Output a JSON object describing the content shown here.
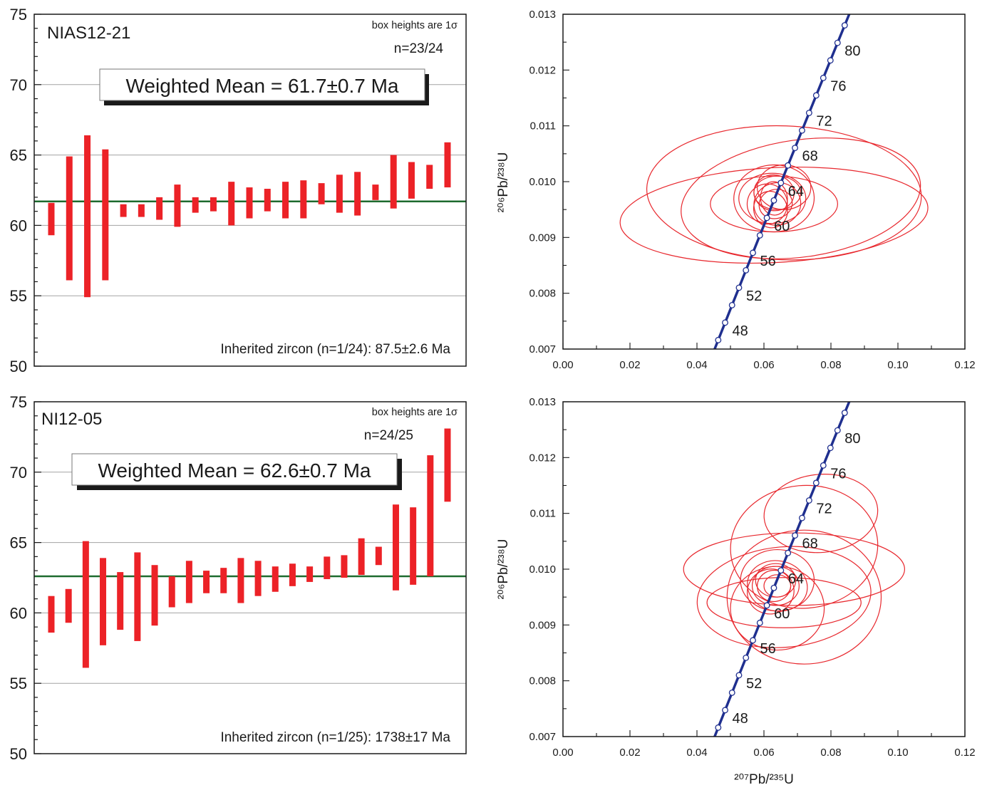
{
  "chart_data": [
    {
      "type": "bar",
      "sample": "NIAS12-21",
      "note": "box heights are 1σ",
      "n": "n=23/24",
      "weighted_mean_label": "Weighted Mean = 61.7±0.7 Ma",
      "mean": 61.7,
      "inherited": "Inherited zircon (n=1/24): 87.5±2.6 Ma",
      "ylim": [
        50,
        75
      ],
      "yticks": [
        50,
        55,
        60,
        65,
        70,
        75
      ],
      "grid": [
        55,
        60,
        65,
        70
      ],
      "boxes": [
        [
          59.3,
          61.6
        ],
        [
          56.1,
          64.9
        ],
        [
          54.9,
          66.4
        ],
        [
          56.1,
          65.4
        ],
        [
          60.6,
          61.5
        ],
        [
          60.6,
          61.5
        ],
        [
          60.4,
          62.0
        ],
        [
          59.9,
          62.9
        ],
        [
          60.9,
          62.0
        ],
        [
          61.0,
          62.0
        ],
        [
          60.0,
          63.1
        ],
        [
          60.5,
          62.7
        ],
        [
          61.0,
          62.6
        ],
        [
          60.5,
          63.1
        ],
        [
          60.5,
          63.2
        ],
        [
          61.5,
          63.0
        ],
        [
          60.9,
          63.6
        ],
        [
          60.7,
          63.8
        ],
        [
          61.8,
          62.9
        ],
        [
          61.2,
          65.0
        ],
        [
          61.9,
          64.5
        ],
        [
          62.6,
          64.3
        ],
        [
          62.7,
          65.9
        ]
      ],
      "color": "#ec2227",
      "mean_color": "#1e6b2e"
    },
    {
      "type": "scatter",
      "xlabel": "²⁰⁷Pb/²³⁵U",
      "ylabel": "²⁰⁶Pb/²³⁸U",
      "xlim": [
        0.0,
        0.12
      ],
      "ylim": [
        0.007,
        0.013
      ],
      "xticks": [
        "0.00",
        "0.02",
        "0.04",
        "0.06",
        "0.08",
        "0.10",
        "0.12"
      ],
      "yticks": [
        "0.007",
        "0.008",
        "0.009",
        "0.010",
        "0.011",
        "0.012",
        "0.013"
      ],
      "concordia_labels": [
        "48",
        "52",
        "56",
        "60",
        "64",
        "68",
        "72",
        "76",
        "80"
      ],
      "concordia_ages": [
        44,
        46,
        48,
        50,
        52,
        54,
        56,
        58,
        60,
        62,
        64,
        66,
        68,
        70,
        72,
        74,
        76,
        78,
        80,
        82
      ],
      "ellipses": [
        {
          "x": 0.063,
          "y": 0.0094,
          "rx": 0.046,
          "ry": 0.00085,
          "angle": 3
        },
        {
          "x": 0.071,
          "y": 0.0097,
          "rx": 0.036,
          "ry": 0.00105,
          "angle": 8
        },
        {
          "x": 0.066,
          "y": 0.0098,
          "rx": 0.041,
          "ry": 0.0012,
          "angle": -2
        },
        {
          "x": 0.063,
          "y": 0.0096,
          "rx": 0.019,
          "ry": 0.0005,
          "angle": 0
        },
        {
          "x": 0.063,
          "y": 0.0097,
          "rx": 0.012,
          "ry": 0.0006,
          "angle": 2
        },
        {
          "x": 0.0625,
          "y": 0.0097,
          "rx": 0.01,
          "ry": 0.00045,
          "angle": 0
        },
        {
          "x": 0.064,
          "y": 0.0096,
          "rx": 0.007,
          "ry": 0.00038,
          "angle": 10
        },
        {
          "x": 0.063,
          "y": 0.0098,
          "rx": 0.006,
          "ry": 0.00032,
          "angle": -8
        },
        {
          "x": 0.063,
          "y": 0.0097,
          "rx": 0.004,
          "ry": 0.0003,
          "angle": 5
        },
        {
          "x": 0.0635,
          "y": 0.0096,
          "rx": 0.005,
          "ry": 0.00026,
          "angle": 15
        },
        {
          "x": 0.064,
          "y": 0.0098,
          "rx": 0.007,
          "ry": 0.0003,
          "angle": 0
        },
        {
          "x": 0.066,
          "y": 0.0099,
          "rx": 0.008,
          "ry": 0.0004,
          "angle": 0
        },
        {
          "x": 0.062,
          "y": 0.0095,
          "rx": 0.005,
          "ry": 0.00033,
          "angle": 20
        },
        {
          "x": 0.061,
          "y": 0.0096,
          "rx": 0.006,
          "ry": 0.00036,
          "angle": -10
        }
      ],
      "ellipse_color": "#e8282e",
      "concordia_color": "#1f2f8f"
    },
    {
      "type": "bar",
      "sample": "NI12-05",
      "note": "box heights are 1σ",
      "n": "n=24/25",
      "weighted_mean_label": "Weighted Mean = 62.6±0.7 Ma",
      "mean": 62.6,
      "inherited": "Inherited zircon (n=1/25): 1738±17 Ma",
      "ylim": [
        50,
        75
      ],
      "yticks": [
        50,
        55,
        60,
        65,
        70,
        75
      ],
      "grid": [
        55,
        60,
        65,
        70
      ],
      "boxes": [
        [
          58.6,
          61.2
        ],
        [
          59.3,
          61.7
        ],
        [
          56.1,
          65.1
        ],
        [
          57.7,
          63.9
        ],
        [
          58.8,
          62.9
        ],
        [
          58.0,
          64.3
        ],
        [
          59.1,
          63.4
        ],
        [
          60.4,
          62.6
        ],
        [
          60.7,
          63.7
        ],
        [
          61.4,
          63.0
        ],
        [
          61.4,
          63.2
        ],
        [
          60.7,
          63.9
        ],
        [
          61.2,
          63.7
        ],
        [
          61.5,
          63.3
        ],
        [
          61.9,
          63.5
        ],
        [
          62.2,
          63.3
        ],
        [
          62.4,
          64.0
        ],
        [
          62.5,
          64.1
        ],
        [
          62.7,
          65.3
        ],
        [
          63.4,
          64.7
        ],
        [
          61.6,
          67.7
        ],
        [
          62.0,
          67.5
        ],
        [
          62.6,
          71.2
        ],
        [
          67.9,
          73.1
        ]
      ],
      "color": "#ec2227",
      "mean_color": "#1e6b2e"
    },
    {
      "type": "scatter",
      "xlabel": "²⁰⁷Pb/²³⁵U",
      "ylabel": "²⁰⁶Pb/²³⁸U",
      "xlim": [
        0.0,
        0.12
      ],
      "ylim": [
        0.007,
        0.013
      ],
      "xticks": [
        "0.00",
        "0.02",
        "0.04",
        "0.06",
        "0.08",
        "0.10",
        "0.12"
      ],
      "yticks": [
        "0.007",
        "0.008",
        "0.009",
        "0.010",
        "0.011",
        "0.012",
        "0.013"
      ],
      "concordia_labels": [
        "48",
        "52",
        "56",
        "60",
        "64",
        "68",
        "72",
        "76",
        "80"
      ],
      "concordia_ages": [
        44,
        46,
        48,
        50,
        52,
        54,
        56,
        58,
        60,
        62,
        64,
        66,
        68,
        70,
        72,
        74,
        76,
        78,
        80,
        82
      ],
      "ellipses": [
        {
          "x": 0.077,
          "y": 0.011,
          "rx": 0.017,
          "ry": 0.0007,
          "angle": 5
        },
        {
          "x": 0.072,
          "y": 0.0104,
          "rx": 0.022,
          "ry": 0.0011,
          "angle": 5
        },
        {
          "x": 0.069,
          "y": 0.01,
          "rx": 0.033,
          "ry": 0.00065,
          "angle": 0
        },
        {
          "x": 0.066,
          "y": 0.0095,
          "rx": 0.026,
          "ry": 0.0009,
          "angle": 5
        },
        {
          "x": 0.072,
          "y": 0.0095,
          "rx": 0.023,
          "ry": 0.0012,
          "angle": 0
        },
        {
          "x": 0.066,
          "y": 0.0094,
          "rx": 0.023,
          "ry": 0.00045,
          "angle": 0
        },
        {
          "x": 0.064,
          "y": 0.0093,
          "rx": 0.014,
          "ry": 0.00075,
          "angle": 0
        },
        {
          "x": 0.064,
          "y": 0.0098,
          "rx": 0.011,
          "ry": 0.00055,
          "angle": 0
        },
        {
          "x": 0.064,
          "y": 0.0097,
          "rx": 0.009,
          "ry": 0.00045,
          "angle": -10
        },
        {
          "x": 0.0635,
          "y": 0.0097,
          "rx": 0.007,
          "ry": 0.00035,
          "angle": 0
        },
        {
          "x": 0.063,
          "y": 0.0097,
          "rx": 0.005,
          "ry": 0.00028,
          "angle": 8
        },
        {
          "x": 0.0635,
          "y": 0.0098,
          "rx": 0.006,
          "ry": 0.0003,
          "angle": 0
        },
        {
          "x": 0.064,
          "y": 0.0097,
          "rx": 0.004,
          "ry": 0.0002,
          "angle": 0
        },
        {
          "x": 0.062,
          "y": 0.0096,
          "rx": 0.007,
          "ry": 0.0004,
          "angle": 20
        }
      ],
      "ellipse_color": "#e8282e",
      "concordia_color": "#1f2f8f"
    }
  ]
}
